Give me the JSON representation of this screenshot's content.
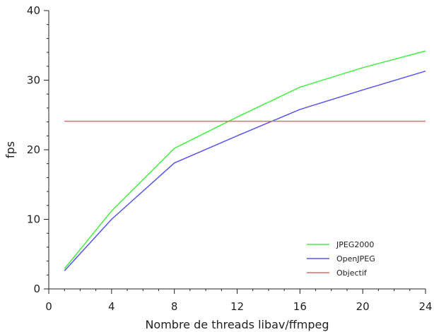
{
  "chart_data": {
    "type": "line",
    "xlabel": "Nombre de threads libav/ffmpeg",
    "ylabel": "fps",
    "xlim": [
      0,
      24
    ],
    "ylim": [
      0,
      40
    ],
    "xticks": [
      0,
      4,
      8,
      12,
      16,
      20,
      24
    ],
    "yticks": [
      0,
      10,
      20,
      30,
      40
    ],
    "grid": false,
    "legend_position": "bottom-right",
    "series": [
      {
        "name": "JPEG2000",
        "color": "#44ee44",
        "x": [
          1,
          4,
          8,
          12,
          16,
          20,
          24
        ],
        "y": [
          2.9,
          11.2,
          20.2,
          24.7,
          29.0,
          31.8,
          34.2
        ]
      },
      {
        "name": "OpenJPEG",
        "color": "#5555ee",
        "x": [
          1,
          4,
          8,
          12,
          16,
          20,
          24
        ],
        "y": [
          2.6,
          10.0,
          18.1,
          22.0,
          25.8,
          28.6,
          31.3
        ]
      },
      {
        "name": "Objectif",
        "color": "#ee6666",
        "x": [
          1,
          24
        ],
        "y": [
          24.1,
          24.1
        ]
      }
    ]
  }
}
